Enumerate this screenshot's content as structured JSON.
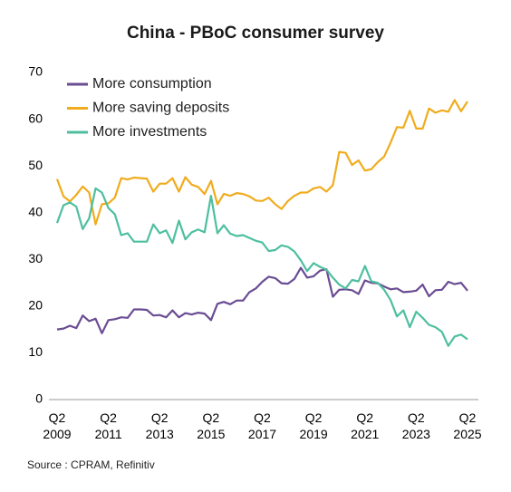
{
  "chart_data": {
    "type": "line",
    "title": "China - PBoC consumer survey",
    "source": "Source : CPRAM, Refinitiv",
    "categories": [
      "Q2 2009",
      null,
      null,
      null,
      null,
      null,
      null,
      null,
      "Q2 2011",
      null,
      null,
      null,
      null,
      null,
      null,
      null,
      "Q2 2013",
      null,
      null,
      null,
      null,
      null,
      null,
      null,
      "Q2 2015",
      null,
      null,
      null,
      null,
      null,
      null,
      null,
      "Q2 2017",
      null,
      null,
      null,
      null,
      null,
      null,
      null,
      "Q2 2019",
      null,
      null,
      null,
      null,
      null,
      null,
      null,
      "Q2 2021",
      null,
      null,
      null,
      null,
      null,
      null,
      null,
      "Q2 2023",
      null,
      null,
      null,
      null,
      null,
      null,
      null,
      "Q2 2025"
    ],
    "series": [
      {
        "name": "More consumption",
        "color": "#6a4c93",
        "values": [
          15,
          15.2,
          15.8,
          15.3,
          18,
          16.8,
          17.3,
          14.2,
          17,
          17.2,
          17.6,
          17.5,
          19.3,
          19.3,
          19.2,
          18,
          18.1,
          17.6,
          19.1,
          17.6,
          18.5,
          18.2,
          18.6,
          18.4,
          17,
          20.5,
          20.9,
          20.4,
          21.2,
          21.2,
          23,
          23.8,
          25.2,
          26.3,
          26,
          24.9,
          24.8,
          25.8,
          28.2,
          26.1,
          26.4,
          27.6,
          27.9,
          22,
          23.5,
          23.6,
          23.4,
          22.6,
          25.5,
          25,
          24.9,
          24.2,
          23.6,
          23.8,
          23,
          23.1,
          23.3,
          24.6,
          22.1,
          23.4,
          23.5,
          25.2,
          24.7,
          25,
          23.3
        ]
      },
      {
        "name": "More saving deposits",
        "color": "#f0ac1e",
        "values": [
          47.2,
          43.5,
          42.4,
          43.8,
          45.6,
          44.3,
          37.5,
          41.8,
          42,
          43.2,
          47.4,
          47.1,
          47.5,
          47.4,
          47.3,
          44.5,
          46.2,
          46.2,
          47.4,
          44.5,
          47.6,
          46,
          45.5,
          44,
          46.8,
          41.8,
          44,
          43.6,
          44.2,
          44,
          43.5,
          42.6,
          42.5,
          43.2,
          41.8,
          40.8,
          42.5,
          43.6,
          44.3,
          44.3,
          45.2,
          45.5,
          44.5,
          45.9,
          53,
          52.8,
          50.2,
          51.2,
          49,
          49.3,
          50.8,
          52,
          55,
          58.3,
          58.2,
          61.8,
          58,
          58,
          62.3,
          61.4,
          61.9,
          61.6,
          64.1,
          61.7,
          63.8
        ]
      },
      {
        "name": "More investments",
        "color": "#4dbf9f",
        "values": [
          37.8,
          41.6,
          42.2,
          41.3,
          36.5,
          38.8,
          45.2,
          44.3,
          41,
          39.7,
          35.2,
          35.6,
          33.8,
          33.8,
          33.8,
          37.5,
          35.6,
          36.2,
          33.5,
          38.3,
          34.3,
          35.8,
          36.4,
          35.8,
          43.6,
          35.6,
          37.3,
          35.5,
          35,
          35.2,
          34.6,
          34,
          33.6,
          31.8,
          32,
          33,
          32.7,
          31.7,
          29.8,
          27.5,
          29.2,
          28.4,
          27.8,
          26.1,
          24.6,
          23.8,
          25.6,
          25.3,
          28.6,
          25.3,
          25,
          23.5,
          21.3,
          17.8,
          19.1,
          15.5,
          18.8,
          17.5,
          16,
          15.5,
          14.5,
          11.5,
          13.5,
          13.9,
          12.9
        ]
      }
    ],
    "ylim": [
      0,
      70
    ],
    "yticks": [
      0,
      10,
      20,
      30,
      40,
      50,
      60,
      70
    ],
    "legend": "upper left"
  }
}
